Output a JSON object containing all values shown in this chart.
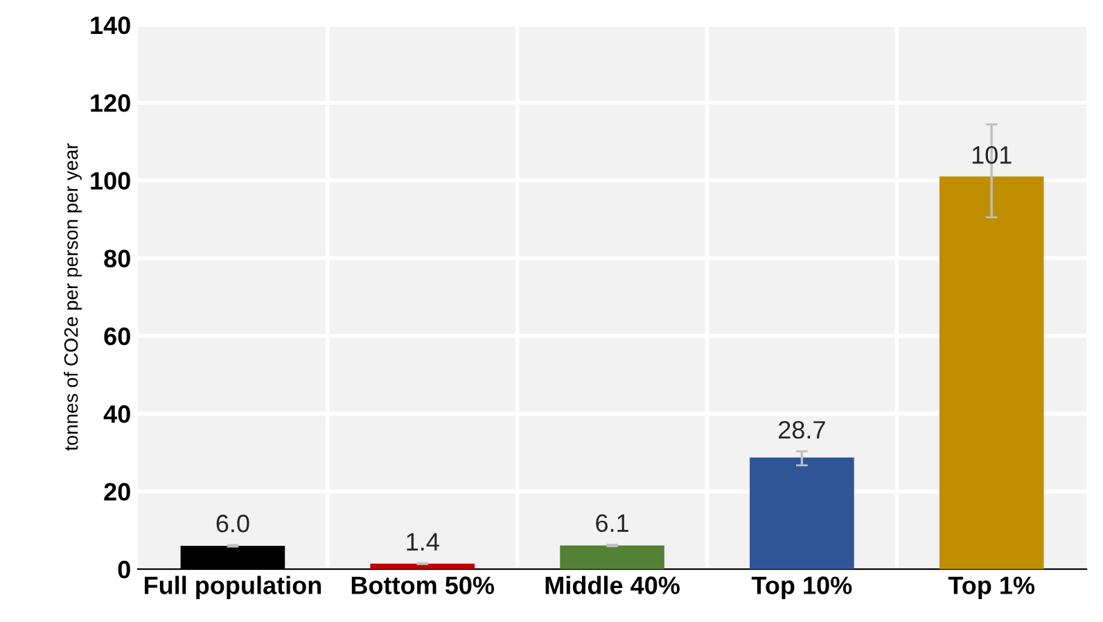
{
  "chart_data": {
    "type": "bar",
    "ylabel": "tonnes of CO2e per person per year",
    "categories": [
      "Full population",
      "Bottom 50%",
      "Middle 40%",
      "Top 10%",
      "Top 1%"
    ],
    "values": [
      6.0,
      1.4,
      6.1,
      28.7,
      101
    ],
    "colors": [
      "#000000",
      "#c00000",
      "#548235",
      "#2f5597",
      "#bf8f00"
    ],
    "errors": [
      [
        5.8,
        6.2
      ],
      [
        1.3,
        1.5
      ],
      [
        5.9,
        6.3
      ],
      [
        26.7,
        30.3
      ],
      [
        90.5,
        114.4
      ]
    ],
    "value_labels": [
      "6.0",
      "1.4",
      "6.1",
      "28.7",
      "101"
    ],
    "ylim": [
      0,
      140
    ],
    "yticks": [
      0,
      20,
      40,
      60,
      80,
      100,
      120,
      140
    ],
    "grid": true
  }
}
